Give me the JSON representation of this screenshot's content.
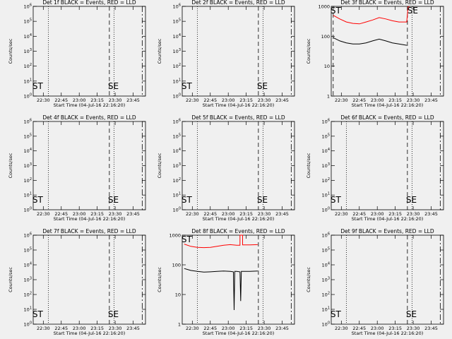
{
  "figure": {
    "background": "#f0f0f0"
  },
  "chart_data": [
    {
      "type": "line",
      "title": "Det 1f BLACK = Events, RED = LLD",
      "xlabel": "Start Time (04-Jul-16 22:16:20)",
      "ylabel": "Counts/sec",
      "yscale": "log",
      "ylim": [
        1,
        1000
      ],
      "ytick_labels": [
        "10^0",
        "10^1",
        "10^2",
        "10^3",
        "10^4",
        "10^5",
        "10^6"
      ],
      "xlim": [
        22.27,
        23.98
      ],
      "xtick_labels": [
        "22:30",
        "22:45",
        "23:00",
        "23:15",
        "23:30",
        "23:45"
      ],
      "vlines": [
        {
          "x": 22.5,
          "style": "dotted"
        },
        {
          "x": 23.5,
          "style": "dotted"
        },
        {
          "x": 23.43,
          "style": "dashed"
        },
        {
          "x": 23.93,
          "style": "dashdot"
        }
      ],
      "annotations": [
        {
          "text": "SE",
          "x": 23.43
        },
        {
          "text": "ST",
          "x": 22.28
        }
      ],
      "series": []
    },
    {
      "type": "line",
      "title": "Det 2f BLACK = Events, RED = LLD",
      "xlabel": "Start Time (04-Jul-16 22:16:20)",
      "ylabel": "Counts/sec",
      "yscale": "log",
      "ylim": [
        1,
        1000
      ],
      "ytick_labels": [
        "10^0",
        "10^1",
        "10^2",
        "10^3",
        "10^4",
        "10^5",
        "10^6"
      ],
      "xlim": [
        22.27,
        23.98
      ],
      "xtick_labels": [
        "22:30",
        "22:45",
        "23:00",
        "23:15",
        "23:30",
        "23:45"
      ],
      "vlines": [
        {
          "x": 22.5,
          "style": "dotted"
        },
        {
          "x": 23.5,
          "style": "dotted"
        },
        {
          "x": 23.43,
          "style": "dashed"
        },
        {
          "x": 23.93,
          "style": "dashdot"
        }
      ],
      "annotations": [
        {
          "text": "SE",
          "x": 23.43
        },
        {
          "text": "ST",
          "x": 22.28
        }
      ],
      "series": []
    },
    {
      "type": "line",
      "title": "Det 3f BLACK = Events, RED = LLD",
      "xlabel": "Start Time (04-Jul-16 22:16:20)",
      "ylabel": "Counts/sec",
      "yscale": "log",
      "ylim": [
        1,
        1000
      ],
      "ytick_labels": [
        "1",
        "10",
        "100",
        "1000"
      ],
      "xlim": [
        22.27,
        23.98
      ],
      "xtick_labels": [
        "22:30",
        "22:45",
        "23:00",
        "23:15",
        "23:30",
        "23:45"
      ],
      "vlines": [
        {
          "x": 22.3,
          "style": "dashed"
        },
        {
          "x": 23.5,
          "style": "dotted"
        },
        {
          "x": 23.43,
          "style": "dashed"
        },
        {
          "x": 23.93,
          "style": "dashdot"
        }
      ],
      "annotations": [
        {
          "text": "SE",
          "x": 23.45,
          "pos": "top"
        },
        {
          "text": "ST",
          "x": 22.28,
          "pos": "top"
        }
      ],
      "series": [
        {
          "color": "#ff0000",
          "x": [
            22.3,
            22.4,
            22.5,
            22.6,
            22.7,
            22.8,
            22.9,
            23.0,
            23.1,
            23.2,
            23.3,
            23.42,
            23.44,
            23.46
          ],
          "y": [
            500,
            380,
            300,
            270,
            260,
            300,
            350,
            420,
            380,
            330,
            300,
            300,
            950,
            990
          ]
        },
        {
          "color": "#000000",
          "x": [
            22.3,
            22.4,
            22.5,
            22.6,
            22.7,
            22.8,
            22.9,
            23.0,
            23.1,
            23.2,
            23.3,
            23.42
          ],
          "y": [
            90,
            70,
            60,
            55,
            55,
            60,
            70,
            80,
            70,
            60,
            55,
            50
          ]
        }
      ]
    },
    {
      "type": "line",
      "title": "Det 4f BLACK = Events, RED = LLD",
      "xlabel": "Start Time (04-Jul-16 22:16:20)",
      "ylabel": "Counts/sec",
      "yscale": "log",
      "ylim": [
        1,
        1000
      ],
      "ytick_labels": [
        "10^0",
        "10^1",
        "10^2",
        "10^3",
        "10^4",
        "10^5",
        "10^6"
      ],
      "xlim": [
        22.27,
        23.98
      ],
      "xtick_labels": [
        "22:30",
        "22:45",
        "23:00",
        "23:15",
        "23:30",
        "23:45"
      ],
      "vlines": [
        {
          "x": 22.5,
          "style": "dotted"
        },
        {
          "x": 23.5,
          "style": "dotted"
        },
        {
          "x": 23.43,
          "style": "dashed"
        },
        {
          "x": 23.93,
          "style": "dashdot"
        }
      ],
      "annotations": [
        {
          "text": "SE",
          "x": 23.43
        },
        {
          "text": "ST",
          "x": 22.28
        }
      ],
      "series": []
    },
    {
      "type": "line",
      "title": "Det 5f BLACK = Events, RED = LLD",
      "xlabel": "Start Time (04-Jul-16 22:16:20)",
      "ylabel": "Counts/sec",
      "yscale": "log",
      "ylim": [
        1,
        1000
      ],
      "ytick_labels": [
        "10^0",
        "10^1",
        "10^2",
        "10^3",
        "10^4",
        "10^5",
        "10^6"
      ],
      "xlim": [
        22.27,
        23.98
      ],
      "xtick_labels": [
        "22:30",
        "22:45",
        "23:00",
        "23:15",
        "23:30",
        "23:45"
      ],
      "vlines": [
        {
          "x": 22.5,
          "style": "dotted"
        },
        {
          "x": 23.5,
          "style": "dotted"
        },
        {
          "x": 23.43,
          "style": "dashed"
        },
        {
          "x": 23.93,
          "style": "dashdot"
        }
      ],
      "annotations": [
        {
          "text": "SE",
          "x": 23.43
        },
        {
          "text": "ST",
          "x": 22.28
        }
      ],
      "series": []
    },
    {
      "type": "line",
      "title": "Det 6f BLACK = Events, RED = LLD",
      "xlabel": "Start Time (04-Jul-16 22:16:20)",
      "ylabel": "Counts/sec",
      "yscale": "log",
      "ylim": [
        1,
        1000
      ],
      "ytick_labels": [
        "10^0",
        "10^1",
        "10^2",
        "10^3",
        "10^4",
        "10^5",
        "10^6"
      ],
      "xlim": [
        22.27,
        23.98
      ],
      "xtick_labels": [
        "22:30",
        "22:45",
        "23:00",
        "23:15",
        "23:30",
        "23:45"
      ],
      "vlines": [
        {
          "x": 22.5,
          "style": "dotted"
        },
        {
          "x": 23.5,
          "style": "dotted"
        },
        {
          "x": 23.43,
          "style": "dashed"
        },
        {
          "x": 23.93,
          "style": "dashdot"
        }
      ],
      "annotations": [
        {
          "text": "SE",
          "x": 23.43
        },
        {
          "text": "ST",
          "x": 22.28
        }
      ],
      "series": []
    },
    {
      "type": "line",
      "title": "Det 7f BLACK = Events, RED = LLD",
      "xlabel": "Start Time (04-Jul-16 22:16:20)",
      "ylabel": "Counts/sec",
      "yscale": "log",
      "ylim": [
        1,
        1000
      ],
      "ytick_labels": [
        "10^0",
        "10^1",
        "10^2",
        "10^3",
        "10^4",
        "10^5",
        "10^6"
      ],
      "xlim": [
        22.27,
        23.98
      ],
      "xtick_labels": [
        "22:30",
        "22:45",
        "23:00",
        "23:15",
        "23:30",
        "23:45"
      ],
      "vlines": [
        {
          "x": 22.5,
          "style": "dotted"
        },
        {
          "x": 23.5,
          "style": "dotted"
        },
        {
          "x": 23.43,
          "style": "dashed"
        },
        {
          "x": 23.93,
          "style": "dashdot"
        }
      ],
      "annotations": [
        {
          "text": "SE",
          "x": 23.43
        },
        {
          "text": "ST",
          "x": 22.28
        }
      ],
      "series": []
    },
    {
      "type": "line",
      "title": "Det 8f BLACK = Events, RED = LLD",
      "xlabel": "Start Time (04-Jul-16 22:16:20)",
      "ylabel": "Counts/sec",
      "yscale": "log",
      "ylim": [
        1,
        1000
      ],
      "ytick_labels": [
        "1",
        "10",
        "100",
        "1000"
      ],
      "xlim": [
        22.27,
        23.98
      ],
      "xtick_labels": [
        "22:30",
        "22:45",
        "23:00",
        "23:15",
        "23:30",
        "23:45"
      ],
      "vlines": [
        {
          "x": 22.5,
          "style": "dotted"
        },
        {
          "x": 23.5,
          "style": "dotted"
        },
        {
          "x": 23.43,
          "style": "dashed"
        },
        {
          "x": 23.93,
          "style": "dashdot"
        }
      ],
      "annotations": [
        {
          "text": "ST",
          "x": 22.28,
          "pos": "top"
        }
      ],
      "series": [
        {
          "color": "#ff0000",
          "x": [
            22.3,
            22.4,
            22.5,
            22.6,
            22.7,
            22.8,
            22.9,
            23.0,
            23.1,
            23.15,
            23.15,
            23.17,
            23.19,
            23.19,
            23.3,
            23.42
          ],
          "y": [
            500,
            420,
            390,
            380,
            390,
            420,
            460,
            480,
            460,
            460,
            1000,
            1000,
            1000,
            470,
            470,
            480
          ]
        },
        {
          "color": "#000000",
          "x": [
            22.3,
            22.4,
            22.5,
            22.6,
            22.7,
            22.8,
            22.9,
            23.0,
            23.05,
            23.06,
            23.07,
            23.1,
            23.15,
            23.16,
            23.17,
            23.3,
            23.42
          ],
          "y": [
            75,
            65,
            60,
            57,
            58,
            60,
            62,
            60,
            58,
            3,
            60,
            60,
            58,
            6,
            60,
            60,
            62
          ]
        }
      ]
    },
    {
      "type": "line",
      "title": "Det 9f BLACK = Events, RED = LLD",
      "xlabel": "Start Time (04-Jul-16 22:16:20)",
      "ylabel": "Counts/sec",
      "yscale": "log",
      "ylim": [
        1,
        1000
      ],
      "ytick_labels": [
        "10^0",
        "10^1",
        "10^2",
        "10^3",
        "10^4",
        "10^5",
        "10^6"
      ],
      "xlim": [
        22.27,
        23.98
      ],
      "xtick_labels": [
        "22:30",
        "22:45",
        "23:00",
        "23:15",
        "23:30",
        "23:45"
      ],
      "vlines": [
        {
          "x": 22.5,
          "style": "dotted"
        },
        {
          "x": 23.5,
          "style": "dotted"
        },
        {
          "x": 23.43,
          "style": "dashed"
        },
        {
          "x": 23.93,
          "style": "dashdot"
        }
      ],
      "annotations": [
        {
          "text": "SE",
          "x": 23.43
        },
        {
          "text": "ST",
          "x": 22.28
        }
      ],
      "series": []
    }
  ]
}
